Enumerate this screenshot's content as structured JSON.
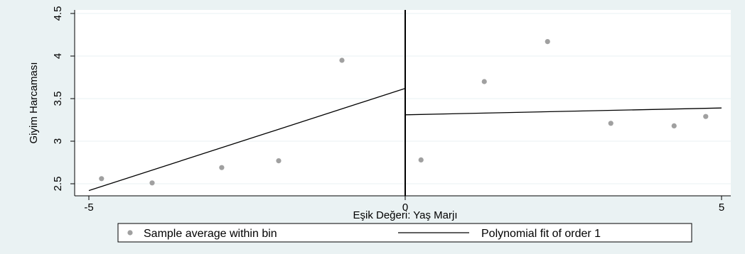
{
  "chart_data": {
    "type": "scatter",
    "title": "",
    "xlabel": "Eşik Değeri: Yaş Marjı",
    "ylabel": "Giyim Harcaması",
    "xlim": [
      -5,
      5
    ],
    "ylim": [
      2.45,
      4.5
    ],
    "xticks": [
      -5,
      0,
      5
    ],
    "yticks": [
      2.5,
      3,
      3.5,
      4,
      4.5
    ],
    "xtick_labels": [
      "-5",
      "0",
      "5"
    ],
    "ytick_labels": [
      "2.5",
      "3",
      "3.5",
      "4",
      "4.5"
    ],
    "cutoff": 0,
    "grid": true,
    "legend_position": "bottom",
    "series": [
      {
        "name": "Sample average within bin",
        "kind": "scatter",
        "color": "#a0a0a0",
        "points": [
          {
            "x": -4.8,
            "y": 2.56
          },
          {
            "x": -4.0,
            "y": 2.51
          },
          {
            "x": -2.9,
            "y": 2.69
          },
          {
            "x": -2.0,
            "y": 2.77
          },
          {
            "x": -1.0,
            "y": 3.95
          },
          {
            "x": 0.25,
            "y": 2.78
          },
          {
            "x": 1.25,
            "y": 3.7
          },
          {
            "x": 2.25,
            "y": 4.17
          },
          {
            "x": 3.25,
            "y": 3.21
          },
          {
            "x": 4.25,
            "y": 3.18
          },
          {
            "x": 4.75,
            "y": 3.29
          }
        ]
      },
      {
        "name": "Polynomial fit of order 1",
        "kind": "line",
        "color": "#000000",
        "segments": [
          [
            {
              "x": -5,
              "y": 2.42
            },
            {
              "x": 0,
              "y": 3.62
            }
          ],
          [
            {
              "x": 0,
              "y": 3.31
            },
            {
              "x": 5,
              "y": 3.39
            }
          ]
        ]
      }
    ]
  }
}
